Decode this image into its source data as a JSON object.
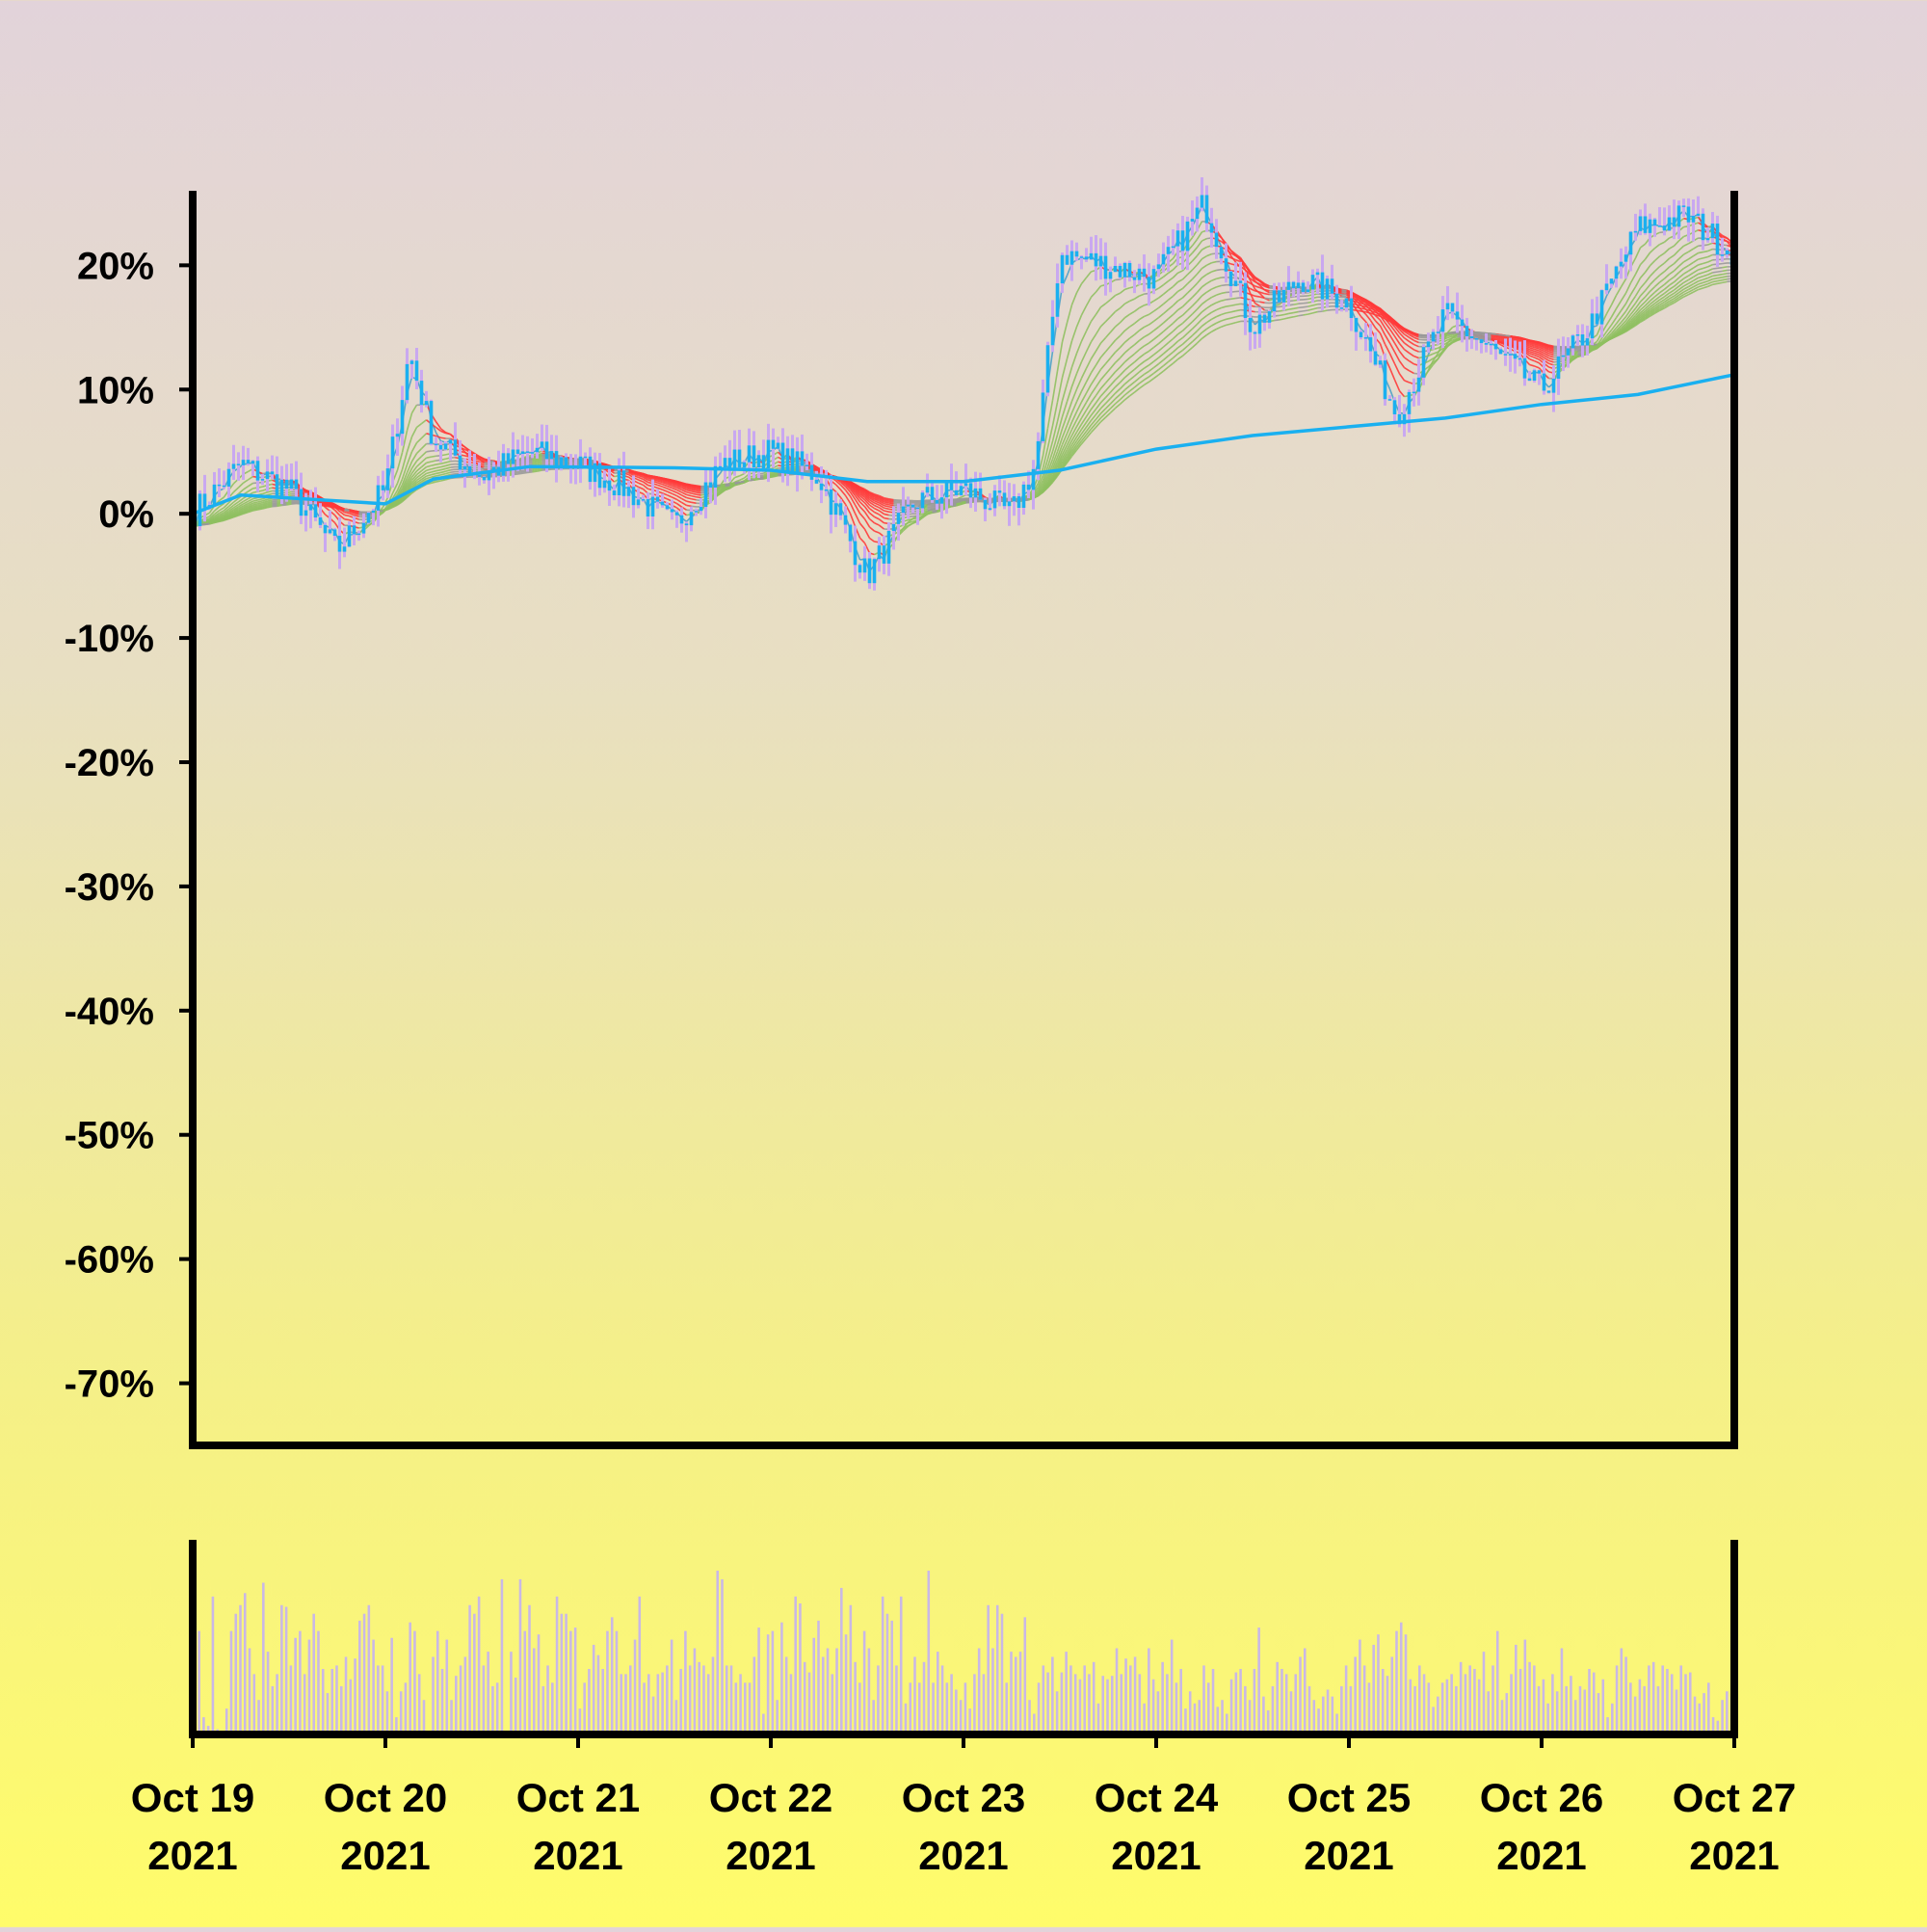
{
  "chart_data": {
    "type": "line",
    "title": "",
    "xlabel": "",
    "ylabel": "",
    "y_unit": "%",
    "ylim": [
      -75,
      26
    ],
    "y_ticks": [
      20,
      10,
      0,
      -10,
      -20,
      -30,
      -40,
      -50,
      -60,
      -70
    ],
    "y_tick_labels": [
      "20%",
      "10%",
      "0%",
      "-10%",
      "-20%",
      "-30%",
      "-40%",
      "-50%",
      "-60%",
      "-70%"
    ],
    "x_ticks": [
      {
        "date": "2021-10-19",
        "line1": "Oct 19",
        "line2": "2021"
      },
      {
        "date": "2021-10-20",
        "line1": "Oct 20",
        "line2": "2021"
      },
      {
        "date": "2021-10-21",
        "line1": "Oct 21",
        "line2": "2021"
      },
      {
        "date": "2021-10-22",
        "line1": "Oct 22",
        "line2": "2021"
      },
      {
        "date": "2021-10-23",
        "line1": "Oct 23",
        "line2": "2021"
      },
      {
        "date": "2021-10-24",
        "line1": "Oct 24",
        "line2": "2021"
      },
      {
        "date": "2021-10-25",
        "line1": "Oct 25",
        "line2": "2021"
      },
      {
        "date": "2021-10-26",
        "line1": "Oct 26",
        "line2": "2021"
      },
      {
        "date": "2021-10-27",
        "line1": "Oct 27",
        "line2": "2021"
      }
    ],
    "xlim": [
      "2021-10-19 00:00",
      "2021-10-27 00:00"
    ],
    "grid": false,
    "legend": "none",
    "price_series": {
      "name": "",
      "x": [
        "2021-10-19 00:00",
        "2021-10-19 06:00",
        "2021-10-19 12:00",
        "2021-10-19 18:00",
        "2021-10-20 00:00",
        "2021-10-20 03:00",
        "2021-10-20 06:00",
        "2021-10-20 12:00",
        "2021-10-20 18:00",
        "2021-10-21 00:00",
        "2021-10-21 06:00",
        "2021-10-21 12:00",
        "2021-10-21 18:00",
        "2021-10-22 00:00",
        "2021-10-22 06:00",
        "2021-10-22 12:00",
        "2021-10-22 18:00",
        "2021-10-23 00:00",
        "2021-10-23 06:00",
        "2021-10-23 09:00",
        "2021-10-23 12:00",
        "2021-10-23 18:00",
        "2021-10-24 00:00",
        "2021-10-24 06:00",
        "2021-10-24 12:00",
        "2021-10-24 18:00",
        "2021-10-25 00:00",
        "2021-10-25 06:00",
        "2021-10-25 12:00",
        "2021-10-25 18:00",
        "2021-10-26 00:00",
        "2021-10-26 06:00",
        "2021-10-26 12:00",
        "2021-10-26 18:00",
        "2021-10-27 00:00"
      ],
      "y": [
        0,
        4,
        2,
        -3,
        2,
        13,
        6,
        3,
        5,
        4,
        2,
        -1,
        4,
        5,
        3,
        -5,
        1,
        2,
        0,
        4,
        21,
        20,
        19,
        25,
        15,
        19,
        17,
        8,
        16,
        13,
        10,
        15,
        23,
        24,
        21
      ]
    },
    "long_ma": {
      "name": "",
      "x": [
        "2021-10-19 00:00",
        "2021-10-19 06:00",
        "2021-10-20 00:00",
        "2021-10-20 06:00",
        "2021-10-20 18:00",
        "2021-10-21 12:00",
        "2021-10-22 00:00",
        "2021-10-22 12:00",
        "2021-10-23 00:00",
        "2021-10-23 12:00",
        "2021-10-24 00:00",
        "2021-10-24 12:00",
        "2021-10-25 00:00",
        "2021-10-25 12:00",
        "2021-10-26 00:00",
        "2021-10-26 12:00",
        "2021-10-27 00:00"
      ],
      "y": [
        0,
        1.5,
        0.8,
        2.8,
        3.8,
        3.7,
        3.5,
        2.6,
        2.6,
        3.5,
        5.2,
        6.3,
        7,
        7.7,
        8.8,
        9.6,
        11.2
      ]
    },
    "ribbon_colors": {
      "up": "#8fc060",
      "down": "#ff3a3a",
      "neutral": "#999999",
      "fast": "#4aa0c8"
    },
    "candle_color": "#1ab0f0",
    "wick_color": "#c9a8f0",
    "long_ma_color": "#1ab0f0",
    "volume": {
      "name": "",
      "color": "#c9b8e6",
      "values": [
        95,
        60,
        10,
        5,
        80,
        3,
        1,
        15,
        60,
        70,
        75,
        82,
        50,
        35,
        20,
        88,
        48,
        28,
        35,
        75,
        74,
        40,
        56,
        60,
        35,
        55,
        70,
        60,
        38,
        24,
        38,
        40,
        28,
        45,
        32,
        44,
        66,
        70,
        75,
        55,
        40,
        40,
        25,
        56,
        10,
        25,
        30,
        65,
        60,
        35,
        20,
        1,
        45,
        60,
        38,
        55,
        20,
        34,
        40,
        45,
        75,
        70,
        80,
        40,
        48,
        28,
        30,
        90,
        1,
        48,
        33,
        90,
        60,
        75,
        50,
        58,
        28,
        40,
        30,
        80,
        70,
        70,
        60,
        62,
        15,
        30,
        38,
        52,
        46,
        38,
        60,
        68,
        60,
        35,
        35,
        40,
        55,
        80,
        30,
        35,
        22,
        35,
        36,
        40,
        55,
        20,
        38,
        60,
        40,
        50,
        42,
        40,
        35,
        45,
        95,
        90,
        40,
        40,
        30,
        35,
        30,
        30,
        45,
        62,
        12,
        58,
        60,
        20,
        65,
        45,
        35,
        80,
        76,
        42,
        36,
        56,
        66,
        45,
        50,
        35,
        50,
        85,
        58,
        75,
        42,
        30,
        60,
        50,
        20,
        40,
        80,
        70,
        66,
        40,
        80,
        18,
        30,
        45,
        30,
        42,
        95,
        30,
        48,
        40,
        30,
        35,
        26,
        20,
        30,
        15,
        35,
        50,
        35,
        75,
        50,
        75,
        70,
        30,
        48,
        45,
        48,
        68,
        20,
        12,
        30,
        40,
        36,
        45,
        25,
        36,
        48,
        40,
        35,
        32,
        40,
        35,
        42,
        18,
        34,
        32,
        34,
        50,
        35,
        44,
        40,
        45,
        35,
        18,
        50,
        32,
        25,
        42,
        35,
        55,
        30,
        38,
        15,
        25,
        18,
        20,
        40,
        30,
        38,
        16,
        20,
        12,
        32,
        36,
        38,
        28,
        20,
        38,
        62,
        22,
        14,
        28,
        42,
        38,
        35,
        25,
        35,
        45,
        50,
        28,
        20,
        15,
        22,
        26,
        22,
        12,
        28,
        40,
        28,
        45,
        55,
        40,
        30,
        52,
        58,
        38,
        34,
        45,
        60,
        65,
        58,
        32,
        28,
        40,
        35,
        30,
        16,
        22,
        30,
        32,
        35,
        28,
        42,
        35,
        40,
        38,
        32,
        48,
        25,
        40,
        60,
        20,
        24,
        35,
        52,
        38,
        55,
        42,
        40,
        28,
        32,
        18,
        35,
        25,
        50,
        28,
        34,
        20,
        28,
        26,
        38,
        36,
        24,
        32,
        10,
        18,
        40,
        50,
        45,
        30,
        22,
        32,
        28,
        40,
        42,
        28,
        40,
        38,
        35,
        26,
        40,
        35,
        36,
        22,
        18,
        24,
        30,
        10,
        8,
        20,
        25,
        22
      ]
    }
  }
}
